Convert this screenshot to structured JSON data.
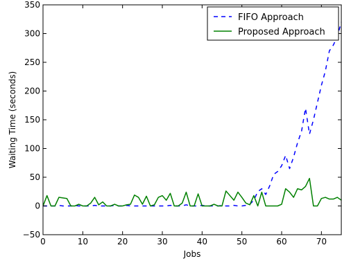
{
  "chart_data": {
    "type": "line",
    "title": "",
    "xlabel": "Jobs",
    "ylabel": "Waiting Time (seconds)",
    "xlim": [
      0,
      75
    ],
    "ylim": [
      -50,
      350
    ],
    "xticks": [
      0,
      10,
      20,
      30,
      40,
      50,
      60,
      70
    ],
    "yticks": [
      -50,
      0,
      50,
      100,
      150,
      200,
      250,
      300,
      350
    ],
    "grid": false,
    "legend_position": "top-right",
    "series": [
      {
        "name": "FIFO Approach",
        "color": "#0000ff",
        "style": "dashed",
        "x": [
          0,
          1,
          2,
          3,
          4,
          5,
          6,
          7,
          8,
          9,
          10,
          11,
          12,
          13,
          14,
          15,
          16,
          17,
          18,
          19,
          20,
          21,
          22,
          23,
          24,
          25,
          26,
          27,
          28,
          29,
          30,
          31,
          32,
          33,
          34,
          35,
          36,
          37,
          38,
          39,
          40,
          41,
          42,
          43,
          44,
          45,
          46,
          47,
          48,
          49,
          50,
          51,
          52,
          53,
          54,
          55,
          56,
          57,
          58,
          59,
          60,
          61,
          62,
          63,
          64,
          65,
          66,
          67,
          68,
          69,
          70,
          71,
          72,
          73,
          74,
          75
        ],
        "y": [
          0,
          0,
          0,
          0,
          1,
          0,
          0,
          0,
          1,
          0,
          0,
          0,
          0,
          1,
          0,
          0,
          0,
          0,
          1,
          0,
          0,
          1,
          0,
          0,
          0,
          0,
          0,
          0,
          0,
          0,
          0,
          0,
          1,
          0,
          0,
          0,
          2,
          0,
          0,
          0,
          1,
          0,
          0,
          0,
          0,
          1,
          0,
          0,
          1,
          0,
          0,
          1,
          3,
          10,
          25,
          30,
          20,
          35,
          55,
          60,
          70,
          88,
          65,
          85,
          110,
          130,
          170,
          125,
          150,
          180,
          210,
          235,
          270,
          280,
          295,
          320
        ]
      },
      {
        "name": "Proposed Approach",
        "color": "#008000",
        "style": "solid",
        "x": [
          0,
          1,
          2,
          3,
          4,
          5,
          6,
          7,
          8,
          9,
          10,
          11,
          12,
          13,
          14,
          15,
          16,
          17,
          18,
          19,
          20,
          21,
          22,
          23,
          24,
          25,
          26,
          27,
          28,
          29,
          30,
          31,
          32,
          33,
          34,
          35,
          36,
          37,
          38,
          39,
          40,
          41,
          42,
          43,
          44,
          45,
          46,
          47,
          48,
          49,
          50,
          51,
          52,
          53,
          54,
          55,
          56,
          57,
          58,
          59,
          60,
          61,
          62,
          63,
          64,
          65,
          66,
          67,
          68,
          69,
          70,
          71,
          72,
          73,
          74,
          75
        ],
        "y": [
          0,
          18,
          0,
          0,
          15,
          14,
          13,
          0,
          0,
          3,
          0,
          0,
          5,
          15,
          2,
          7,
          0,
          0,
          3,
          0,
          0,
          2,
          3,
          19,
          15,
          3,
          17,
          0,
          2,
          15,
          18,
          10,
          22,
          0,
          0,
          5,
          24,
          0,
          0,
          21,
          0,
          0,
          0,
          3,
          0,
          0,
          26,
          18,
          10,
          24,
          15,
          5,
          2,
          18,
          0,
          24,
          0,
          0,
          0,
          0,
          3,
          30,
          24,
          15,
          30,
          28,
          34,
          48,
          0,
          0,
          13,
          15,
          12,
          12,
          15,
          10
        ]
      }
    ]
  }
}
